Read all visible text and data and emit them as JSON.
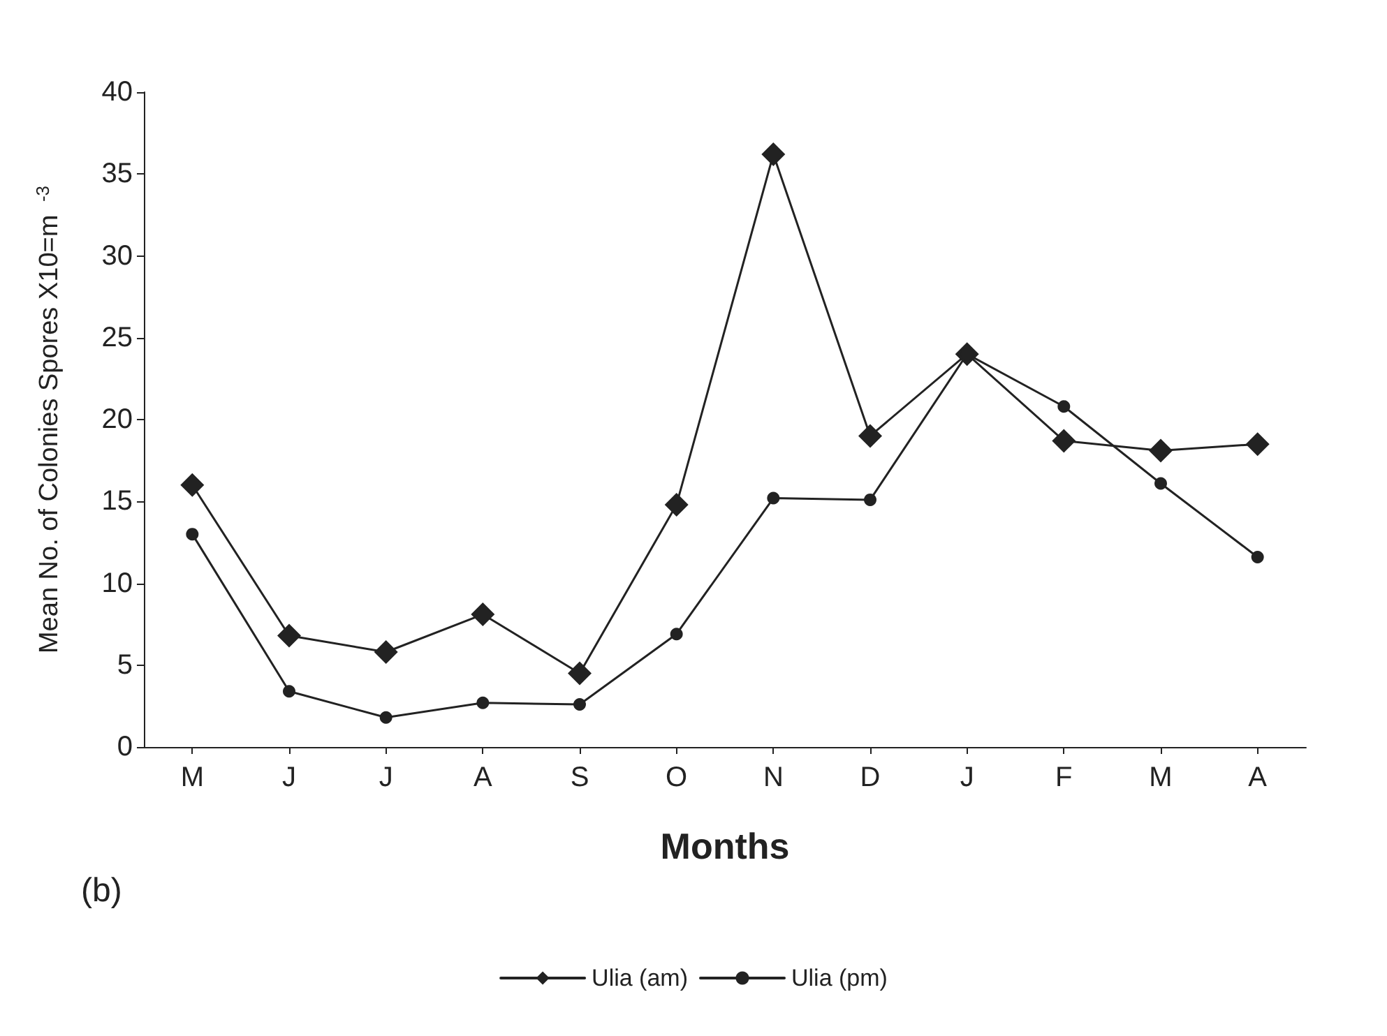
{
  "chart_data": {
    "type": "line",
    "xlabel": "Months",
    "ylabel": "Mean No. of Colonies Spores X10=m $^{-3}$",
    "categories": [
      "M",
      "J",
      "J",
      "A",
      "S",
      "O",
      "N",
      "D",
      "J",
      "F",
      "M",
      "A"
    ],
    "series": [
      {
        "name": "Ulia (am)",
        "color": "#222222",
        "marker": "diamond",
        "values": [
          16.0,
          6.8,
          5.8,
          8.1,
          4.5,
          14.8,
          36.2,
          19.0,
          24.0,
          18.7,
          18.1,
          18.5
        ]
      },
      {
        "name": "Ulia (pm)",
        "color": "#222222",
        "marker": "circle",
        "values": [
          13.0,
          3.4,
          1.8,
          2.7,
          2.6,
          6.9,
          15.2,
          15.1,
          24.0,
          20.8,
          16.1,
          11.6
        ]
      }
    ],
    "ylim": [
      0,
      40
    ],
    "yticks": [
      0,
      5,
      10,
      15,
      20,
      25,
      30,
      35,
      40
    ],
    "grid": false,
    "legend": "bottom",
    "line_style": "solid",
    "annotations": [
      "(b)"
    ]
  }
}
